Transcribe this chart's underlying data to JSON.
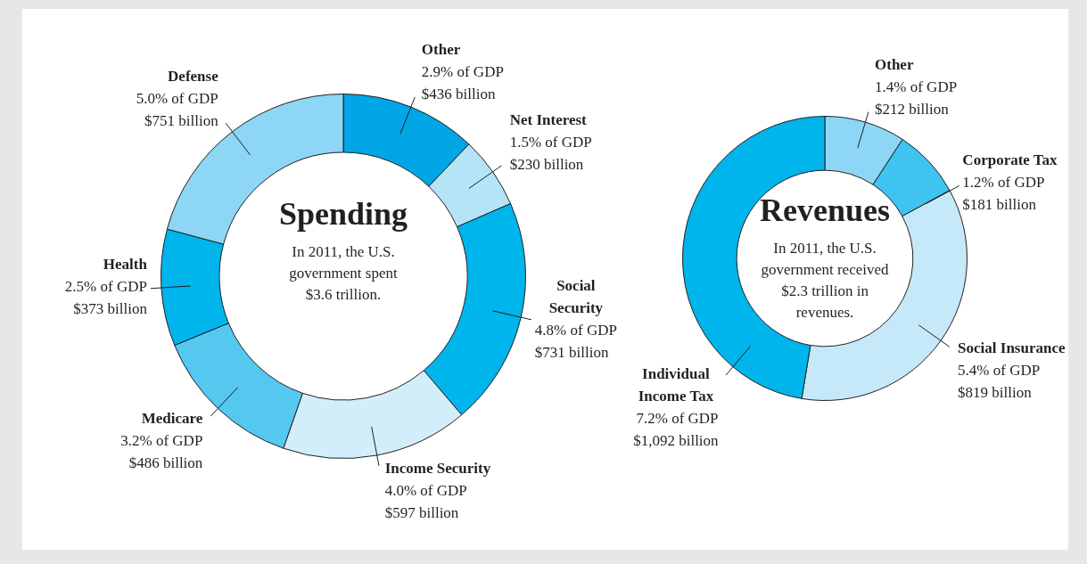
{
  "chart_data": [
    {
      "type": "donut",
      "title": "Spending",
      "categories": [
        "Other",
        "Net Interest",
        "Social Security",
        "Income Security",
        "Medicare",
        "Health",
        "Defense"
      ],
      "values": [
        436,
        230,
        731,
        597,
        486,
        373,
        751
      ],
      "value_labels": [
        "$436 billion",
        "$230 billion",
        "$731 billion",
        "$597 billion",
        "$486 billion",
        "$373 billion",
        "$751 billion"
      ],
      "annotations": [
        "In 2011, the U.S. government spent $3.6 trillion.",
        {
          "text": "2.9% of GDP",
          "x": "Other"
        },
        {
          "text": "1.5% of GDP",
          "x": "Net Interest"
        },
        {
          "text": "4.8% of GDP",
          "x": "Social Security"
        },
        {
          "text": "4.0% of GDP",
          "x": "Income Security"
        },
        {
          "text": "3.2% of GDP",
          "x": "Medicare"
        },
        {
          "text": "2.5% of GDP",
          "x": "Health"
        },
        {
          "text": "5.0% of GDP",
          "x": "Defense"
        }
      ],
      "colors": [
        "#00a6e6",
        "#b5e3f7",
        "#00b4ec",
        "#d3eefb",
        "#55c8f0",
        "#00b4ec",
        "#8dd6f5"
      ]
    },
    {
      "type": "donut",
      "title": "Revenues",
      "categories": [
        "Other",
        "Corporate Tax",
        "Social Insurance",
        "Individual Income Tax"
      ],
      "values": [
        212,
        181,
        819,
        1092
      ],
      "value_labels": [
        "$212 billion",
        "$181 billion",
        "$819 billion",
        "$1,092 billion"
      ],
      "annotations": [
        "In 2011, the U.S. government received $2.3 trillion in revenues.",
        {
          "text": "1.4% of GDP",
          "x": "Other"
        },
        {
          "text": "1.2% of GDP",
          "x": "Corporate Tax"
        },
        {
          "text": "5.4% of GDP",
          "x": "Social Insurance"
        },
        {
          "text": "7.2% of GDP",
          "x": "Individual Income Tax"
        }
      ],
      "colors": [
        "#8dd6f5",
        "#3fc3f0",
        "#c6e9f9",
        "#00b4ec"
      ]
    }
  ]
}
